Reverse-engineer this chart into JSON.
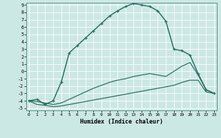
{
  "xlabel": "Humidex (Indice chaleur)",
  "background_color": "#cce8e4",
  "grid_color": "#ffffff",
  "line_color": "#2a6e64",
  "xlim": [
    0,
    23
  ],
  "ylim": [
    -5,
    9
  ],
  "xticks": [
    0,
    1,
    2,
    3,
    4,
    5,
    6,
    7,
    8,
    9,
    10,
    11,
    12,
    13,
    14,
    15,
    16,
    17,
    18,
    19,
    20,
    21,
    22,
    23
  ],
  "yticks": [
    -5,
    -4,
    -3,
    -2,
    -1,
    0,
    1,
    2,
    3,
    4,
    5,
    6,
    7,
    8,
    9
  ],
  "series": [
    {
      "x": [
        0,
        1,
        2,
        3,
        4,
        5,
        6,
        7,
        8,
        9,
        10,
        11,
        12,
        13,
        14,
        15,
        16,
        17,
        18,
        19,
        20,
        21,
        22,
        23
      ],
      "y": [
        -4.0,
        -4.5,
        -4.6,
        -4.8,
        -4.7,
        -4.5,
        -4.3,
        -4.1,
        -3.9,
        -3.7,
        -3.5,
        -3.3,
        -3.1,
        -2.9,
        -2.7,
        -2.5,
        -2.3,
        -2.1,
        -1.9,
        -1.5,
        -1.2,
        -1.2,
        -2.8,
        -3.0
      ],
      "marker": false,
      "linewidth": 0.9
    },
    {
      "x": [
        0,
        1,
        2,
        3,
        4,
        5,
        6,
        7,
        8,
        9,
        10,
        11,
        12,
        13,
        14,
        15,
        16,
        17,
        18,
        19,
        20,
        21,
        22,
        23
      ],
      "y": [
        -4.0,
        -4.1,
        -4.3,
        -4.5,
        -4.3,
        -3.8,
        -3.3,
        -2.8,
        -2.3,
        -1.9,
        -1.5,
        -1.2,
        -1.0,
        -0.7,
        -0.5,
        -0.3,
        -0.5,
        -0.7,
        0.0,
        0.7,
        1.2,
        -0.5,
        -2.5,
        -3.0
      ],
      "marker": false,
      "linewidth": 0.9
    },
    {
      "x": [
        0,
        1,
        2,
        3,
        4,
        5,
        6,
        7,
        8,
        9,
        10,
        11,
        12,
        13,
        14,
        15,
        16,
        17,
        18,
        19,
        20,
        21,
        22,
        23
      ],
      "y": [
        -4.0,
        -3.8,
        -4.5,
        -4.0,
        -1.5,
        2.5,
        3.5,
        4.5,
        5.5,
        6.5,
        7.5,
        8.2,
        8.8,
        9.2,
        9.0,
        8.8,
        8.2,
        6.8,
        3.0,
        2.8,
        2.2,
        -0.3,
        -2.5,
        -3.0
      ],
      "marker": true,
      "linewidth": 1.1
    }
  ]
}
